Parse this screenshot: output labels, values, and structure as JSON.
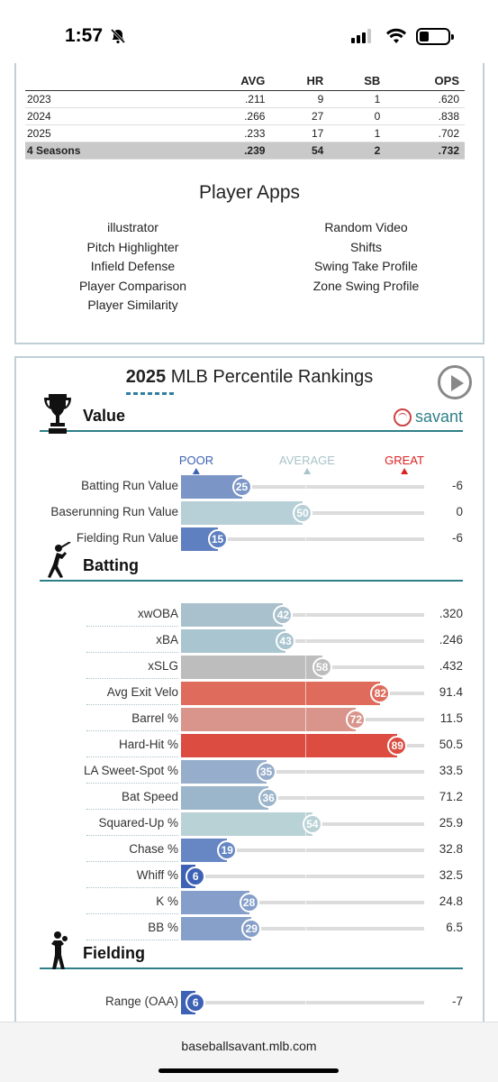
{
  "status": {
    "time": "1:57"
  },
  "stats": {
    "headers": [
      "",
      "AVG",
      "HR",
      "SB",
      "OPS"
    ],
    "rows": [
      [
        "2023",
        ".211",
        "9",
        "1",
        ".620"
      ],
      [
        "2024",
        ".266",
        "27",
        "0",
        ".838"
      ],
      [
        "2025",
        ".233",
        "17",
        "1",
        ".702"
      ]
    ],
    "total": [
      "4 Seasons",
      ".239",
      "54",
      "2",
      ".732"
    ]
  },
  "apps": {
    "title": "Player Apps",
    "left": [
      "illustrator",
      "Pitch Highlighter",
      "Infield Defense",
      "Player Comparison",
      "Player Similarity"
    ],
    "right": [
      "Random Video",
      "Shifts",
      "Swing Take Profile",
      "Zone Swing Profile"
    ]
  },
  "percentile": {
    "title_year": "2025",
    "title_rest": " MLB Percentile Rankings",
    "brand": "savant",
    "scale": {
      "poor": "POOR",
      "average": "AVERAGE",
      "great": "GREAT"
    },
    "sections": [
      {
        "label": "Value",
        "icon": "trophy-icon",
        "metrics": [
          {
            "name": "Batting Run Value",
            "pct": 25,
            "value": "-6",
            "color": "#7b96c6"
          },
          {
            "name": "Baserunning Run Value",
            "pct": 50,
            "value": "0",
            "color": "#b7cfd6"
          },
          {
            "name": "Fielding Run Value",
            "pct": 15,
            "value": "-6",
            "color": "#5e7fc0"
          }
        ]
      },
      {
        "label": "Batting",
        "icon": "batter-icon",
        "metrics": [
          {
            "name": "xwOBA",
            "pct": 42,
            "value": ".320",
            "color": "#a9c1cc"
          },
          {
            "name": "xBA",
            "pct": 43,
            "value": ".246",
            "color": "#a9c5cf"
          },
          {
            "name": "xSLG",
            "pct": 58,
            "value": ".432",
            "color": "#bdbdbd"
          },
          {
            "name": "Avg Exit Velo",
            "pct": 82,
            "value": "91.4",
            "color": "#de6b5b"
          },
          {
            "name": "Barrel %",
            "pct": 72,
            "value": "11.5",
            "color": "#d9958b"
          },
          {
            "name": "Hard-Hit %",
            "pct": 89,
            "value": "50.5",
            "color": "#dc4c40"
          },
          {
            "name": "LA Sweet-Spot %",
            "pct": 35,
            "value": "33.5",
            "color": "#96aecb"
          },
          {
            "name": "Bat Speed",
            "pct": 36,
            "value": "71.2",
            "color": "#9bb5cb"
          },
          {
            "name": "Squared-Up %",
            "pct": 54,
            "value": "25.9",
            "color": "#b9d2d6"
          },
          {
            "name": "Chase %",
            "pct": 19,
            "value": "32.8",
            "color": "#6687c4"
          },
          {
            "name": "Whiff %",
            "pct": 6,
            "value": "32.5",
            "color": "#3d62b5"
          },
          {
            "name": "K %",
            "pct": 28,
            "value": "24.8",
            "color": "#859fca"
          },
          {
            "name": "BB %",
            "pct": 29,
            "value": "6.5",
            "color": "#87a0c9"
          }
        ]
      },
      {
        "label": "Fielding",
        "icon": "fielder-icon",
        "metrics": [
          {
            "name": "Range (OAA)",
            "pct": 6,
            "value": "-7",
            "color": "#3d62b5"
          }
        ]
      }
    ]
  },
  "browser": {
    "url": "baseballsavant.mlb.com"
  }
}
